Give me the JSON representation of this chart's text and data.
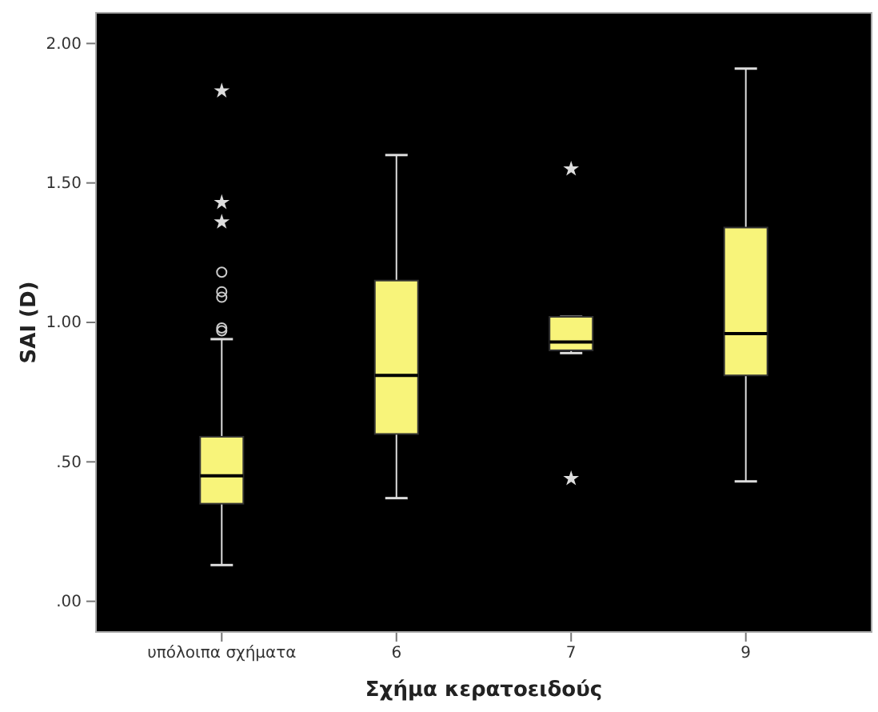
{
  "chart_data": {
    "type": "box",
    "xlabel": "Σχήμα κερατοειδούς",
    "ylabel": "SAI (D)",
    "categories": [
      "υπόλοιπα σχήματα",
      "6",
      "7",
      "9"
    ],
    "color": "#f8f47a",
    "ylim": [
      -0.11,
      2.11
    ],
    "yticks": [
      {
        "value": 0,
        "label": ".00"
      },
      {
        "value": 0.5,
        "label": ".50"
      },
      {
        "value": 1,
        "label": "1.00"
      },
      {
        "value": 1.5,
        "label": "1.50"
      },
      {
        "value": 2,
        "label": "2.00"
      }
    ],
    "boxes": [
      {
        "low": 0.13,
        "q1": 0.35,
        "median": 0.45,
        "q3": 0.59,
        "high": 0.94,
        "outliers": [
          0.97,
          0.98,
          1.09,
          1.11,
          1.18,
          1.36,
          1.43,
          1.83
        ]
      },
      {
        "low": 0.37,
        "q1": 0.6,
        "median": 0.81,
        "q3": 1.15,
        "high": 1.6
      },
      {
        "low": 0.89,
        "q1": 0.9,
        "median": 0.93,
        "q3": 1.02,
        "high": 1.02,
        "outliers": [
          0.44,
          1.55
        ]
      },
      {
        "low": 0.43,
        "q1": 0.81,
        "median": 0.96,
        "q3": 1.34,
        "high": 1.91
      }
    ],
    "grid": false
  }
}
